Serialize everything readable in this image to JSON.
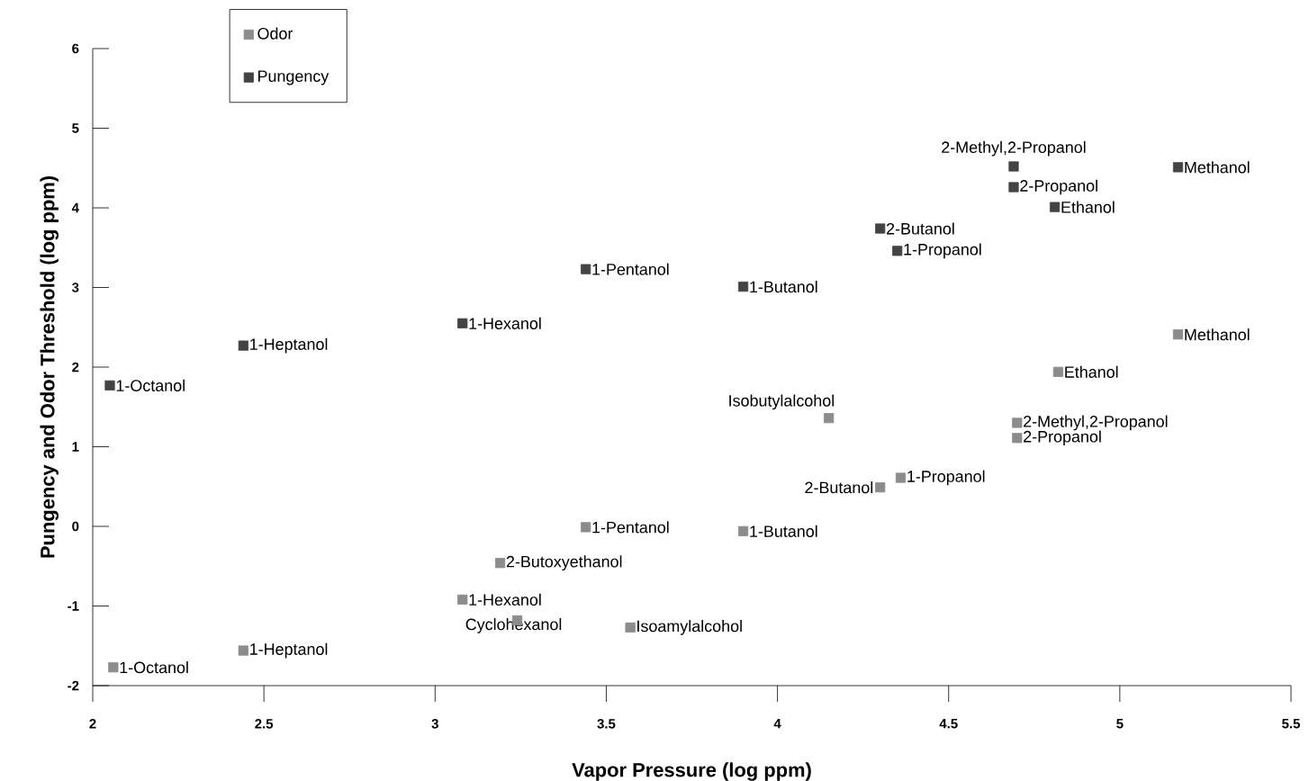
{
  "chart_data": {
    "type": "scatter",
    "xlabel": "Vapor Pressure (log ppm)",
    "ylabel": "Pungency and Odor Threshold (log ppm)",
    "xlim": [
      2,
      5.5
    ],
    "ylim": [
      -2,
      6
    ],
    "xticks": [
      2,
      2.5,
      3,
      3.5,
      4,
      4.5,
      5,
      5.5
    ],
    "yticks": [
      -2,
      -1,
      0,
      1,
      2,
      3,
      4,
      5,
      6
    ],
    "legend": "top left",
    "marker": "square",
    "grid": false,
    "series": [
      {
        "name": "Odor",
        "color": "#8c8c8c",
        "x": [
          2.06,
          2.44,
          3.08,
          3.24,
          3.19,
          3.44,
          3.9,
          3.57,
          4.15,
          4.3,
          4.36,
          4.7,
          4.7,
          4.82,
          5.17
        ],
        "values": [
          -1.77,
          -1.56,
          -0.92,
          -1.18,
          -0.46,
          -0.01,
          -0.06,
          -1.27,
          1.36,
          0.49,
          0.61,
          1.3,
          1.11,
          1.94,
          2.41
        ]
      },
      {
        "name": "Pungency",
        "color": "#444444",
        "x": [
          2.05,
          2.44,
          3.08,
          3.44,
          3.9,
          4.3,
          4.35,
          4.69,
          4.69,
          4.81,
          5.17
        ],
        "values": [
          1.77,
          2.27,
          2.55,
          3.23,
          3.01,
          3.74,
          3.46,
          4.52,
          4.26,
          4.01,
          4.51
        ]
      }
    ],
    "annotations": [
      {
        "text": "1-Octanol",
        "x": 2.05,
        "y": 1.77
      },
      {
        "text": "1-Heptanol",
        "x": 2.44,
        "y": 2.27
      },
      {
        "text": "1-Hexanol",
        "x": 3.08,
        "y": 2.55
      },
      {
        "text": "1-Pentanol",
        "x": 3.44,
        "y": 3.23
      },
      {
        "text": "1-Butanol",
        "x": 3.9,
        "y": 3.01
      },
      {
        "text": "2-Butanol",
        "x": 4.3,
        "y": 3.74
      },
      {
        "text": "1-Propanol",
        "x": 4.35,
        "y": 3.46
      },
      {
        "text": "2-Methyl,2-Propanol",
        "x": 4.69,
        "y": 4.52
      },
      {
        "text": "2-Propanol",
        "x": 4.69,
        "y": 4.26
      },
      {
        "text": "Ethanol",
        "x": 4.81,
        "y": 4.01
      },
      {
        "text": "Methanol",
        "x": 5.17,
        "y": 4.51
      },
      {
        "text": "1-Octanol",
        "x": 2.06,
        "y": -1.77
      },
      {
        "text": "1-Heptanol",
        "x": 2.44,
        "y": -1.56
      },
      {
        "text": "1-Hexanol",
        "x": 3.08,
        "y": -0.92
      },
      {
        "text": "Cyclohexanol",
        "x": 3.24,
        "y": -1.18
      },
      {
        "text": "2-Butoxyethanol",
        "x": 3.19,
        "y": -0.46
      },
      {
        "text": "1-Pentanol",
        "x": 3.44,
        "y": -0.01
      },
      {
        "text": "1-Butanol",
        "x": 3.9,
        "y": -0.06
      },
      {
        "text": "Isoamylalcohol",
        "x": 3.57,
        "y": -1.27
      },
      {
        "text": "Isobutylalcohol",
        "x": 4.15,
        "y": 1.36
      },
      {
        "text": "2-Butanol",
        "x": 4.3,
        "y": 0.49
      },
      {
        "text": "1-Propanol",
        "x": 4.36,
        "y": 0.61
      },
      {
        "text": "2-Methyl,2-Propanol",
        "x": 4.7,
        "y": 1.3
      },
      {
        "text": "2-Propanol",
        "x": 4.7,
        "y": 1.11
      },
      {
        "text": "Ethanol",
        "x": 4.82,
        "y": 1.94
      },
      {
        "text": "Methanol",
        "x": 5.17,
        "y": 2.41
      }
    ]
  }
}
